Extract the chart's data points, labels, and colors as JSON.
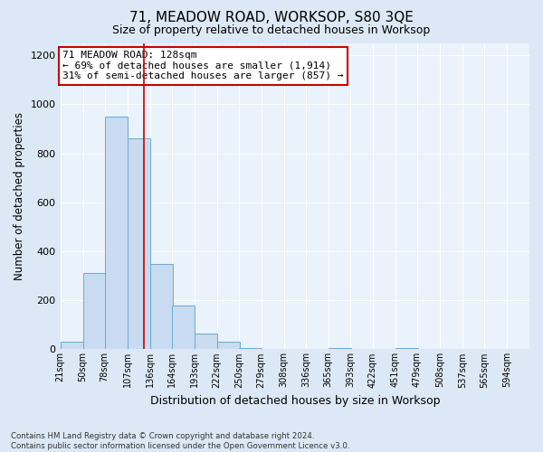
{
  "title": "71, MEADOW ROAD, WORKSOP, S80 3QE",
  "subtitle": "Size of property relative to detached houses in Worksop",
  "xlabel": "Distribution of detached houses by size in Worksop",
  "ylabel": "Number of detached properties",
  "footnote": "Contains HM Land Registry data © Crown copyright and database right 2024.\nContains public sector information licensed under the Open Government Licence v3.0.",
  "bins": [
    21,
    50,
    78,
    107,
    136,
    164,
    193,
    222,
    250,
    279,
    308,
    336,
    365,
    393,
    422,
    451,
    479,
    508,
    537,
    565,
    594
  ],
  "bar_heights": [
    30,
    310,
    950,
    860,
    350,
    180,
    65,
    30,
    5,
    0,
    0,
    0,
    5,
    0,
    0,
    5,
    0,
    0,
    0,
    0,
    0
  ],
  "bar_color": "#c8dbf0",
  "bar_edgecolor": "#6aaad4",
  "property_size": 128,
  "vline_color": "#cc0000",
  "annotation_line1": "71 MEADOW ROAD: 128sqm",
  "annotation_line2": "← 69% of detached houses are smaller (1,914)",
  "annotation_line3": "31% of semi-detached houses are larger (857) →",
  "annotation_box_color": "#ffffff",
  "annotation_box_edgecolor": "#cc0000",
  "ylim": [
    0,
    1250
  ],
  "yticks": [
    0,
    200,
    400,
    600,
    800,
    1000,
    1200
  ],
  "bg_color": "#dce8f5",
  "plot_bg_color": "#eaf2fb",
  "grid_color": "#ffffff"
}
